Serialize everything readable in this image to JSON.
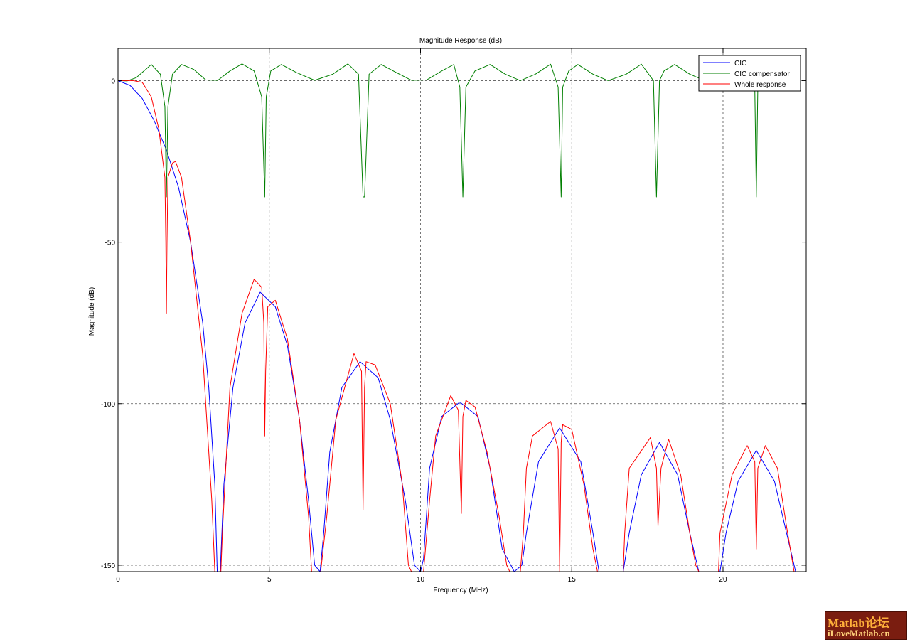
{
  "chart_data": {
    "type": "line",
    "title": "Magnitude Response (dB)",
    "xlabel": "Frequency (MHz)",
    "ylabel": "Magnitude (dB)",
    "xlim": [
      0,
      22.75
    ],
    "ylim": [
      -152,
      10
    ],
    "xticks": [
      0,
      5,
      10,
      15,
      20
    ],
    "yticks": [
      0,
      -50,
      -100,
      -150
    ],
    "grid": true,
    "legend_position": "top-right",
    "series": [
      {
        "name": "CIC",
        "color": "#0000ff",
        "x": [
          0,
          0.4,
          0.8,
          1.2,
          1.6,
          2.0,
          2.4,
          2.8,
          3.0,
          3.2,
          3.28,
          3.38,
          3.5,
          3.8,
          4.2,
          4.7,
          5.2,
          5.6,
          6.0,
          6.3,
          6.5,
          6.68,
          6.8,
          7.0,
          7.4,
          8.0,
          8.6,
          9.0,
          9.5,
          9.8,
          10.0,
          10.1,
          10.3,
          10.7,
          11.3,
          11.9,
          12.3,
          12.7,
          13.1,
          13.35,
          13.5,
          13.9,
          14.6,
          15.3,
          15.7,
          15.9,
          16.7,
          16.9,
          17.3,
          17.9,
          18.5,
          18.9,
          19.2,
          19.9,
          20.1,
          20.5,
          21.1,
          21.7,
          22.1,
          22.4
        ],
        "y": [
          0,
          -1.5,
          -5.5,
          -12.5,
          -21.5,
          -33,
          -50,
          -75,
          -95,
          -125,
          -152,
          -152,
          -125,
          -95,
          -75,
          -65.5,
          -70,
          -82,
          -105,
          -130,
          -150,
          -152,
          -140,
          -115,
          -95,
          -87,
          -92,
          -105,
          -130,
          -150,
          -152,
          -148,
          -120,
          -104,
          -99.5,
          -104,
          -120,
          -145,
          -152,
          -150,
          -140,
          -118,
          -107.5,
          -118,
          -140,
          -152,
          -152,
          -140,
          -122,
          -112,
          -122,
          -140,
          -152,
          -152,
          -140,
          -124,
          -114.5,
          -124,
          -140,
          -152
        ]
      },
      {
        "name": "CIC compensator",
        "color": "#007f00",
        "x": [
          0,
          0.3,
          0.6,
          1.1,
          1.4,
          1.55,
          1.6,
          1.65,
          1.8,
          2.1,
          2.5,
          2.9,
          3.3,
          3.7,
          4.1,
          4.5,
          4.75,
          4.85,
          4.9,
          5.05,
          5.4,
          5.9,
          6.5,
          7.1,
          7.6,
          7.95,
          8.1,
          8.15,
          8.3,
          8.7,
          9.2,
          9.7,
          10.2,
          10.7,
          11.1,
          11.3,
          11.4,
          11.5,
          11.8,
          12.3,
          12.8,
          13.3,
          13.8,
          14.3,
          14.55,
          14.65,
          14.7,
          14.9,
          15.2,
          15.7,
          16.2,
          16.8,
          17.3,
          17.7,
          17.8,
          17.9,
          18.05,
          18.4,
          18.9,
          19.4,
          19.8,
          20.3,
          20.8,
          21.05,
          21.1,
          21.15,
          21.3,
          21.6
        ],
        "y": [
          0,
          -0.1,
          0.9,
          5.0,
          2.0,
          -8,
          -36,
          -8,
          2.0,
          5.0,
          3.5,
          0.2,
          0.1,
          3.0,
          5.2,
          3.0,
          -5,
          -36,
          -5,
          3.0,
          5.0,
          2.5,
          0.1,
          2.0,
          5.2,
          2.0,
          -36,
          -36,
          2.0,
          5.0,
          2.5,
          0.1,
          0.2,
          3.0,
          5.0,
          -2,
          -36,
          -2,
          3.0,
          5.0,
          2.0,
          0.0,
          2.0,
          5.1,
          -2,
          -36,
          -2,
          3.0,
          5.0,
          2.0,
          0.0,
          2.0,
          5.1,
          0,
          -36,
          0,
          3.0,
          5.0,
          2.0,
          0.0,
          0.5,
          3.5,
          3.5,
          -2,
          -36,
          -2,
          3.0,
          4.5
        ]
      },
      {
        "name": "Whole response",
        "color": "#ff0000",
        "x": [
          0,
          0.5,
          0.8,
          1.1,
          1.35,
          1.55,
          1.58,
          1.6,
          1.62,
          1.65,
          1.8,
          1.9,
          2.1,
          2.4,
          2.8,
          3.1,
          3.2,
          3.25,
          3.32,
          3.4,
          3.45,
          3.7,
          4.1,
          4.5,
          4.75,
          4.82,
          4.85,
          4.88,
          4.95,
          5.2,
          5.6,
          6.0,
          6.3,
          6.4,
          6.5,
          6.7,
          6.9,
          7.2,
          7.8,
          8.05,
          8.1,
          8.15,
          8.2,
          8.5,
          9.0,
          9.4,
          9.6,
          9.7,
          9.8,
          9.9,
          10.0,
          10.1,
          10.3,
          10.5,
          11.0,
          11.25,
          11.35,
          11.4,
          11.5,
          11.8,
          12.2,
          12.6,
          12.85,
          12.95,
          13.05,
          13.3,
          13.4,
          13.45,
          13.5,
          13.7,
          14.3,
          14.55,
          14.6,
          14.65,
          14.7,
          15.0,
          15.4,
          15.7,
          15.85,
          15.95,
          16.7,
          16.75,
          16.9,
          17.6,
          17.8,
          17.85,
          17.95,
          18.2,
          18.6,
          18.9,
          19.1,
          19.2,
          19.85,
          19.9,
          20.3,
          20.8,
          21.05,
          21.1,
          21.15,
          21.4,
          21.8,
          22.1,
          22.35
        ],
        "y": [
          0,
          0,
          -0.5,
          -5,
          -15,
          -30,
          -50,
          -72,
          -50,
          -30,
          -25.5,
          -25,
          -30,
          -50,
          -85,
          -130,
          -152,
          -152,
          -152,
          -152,
          -140,
          -95,
          -72,
          -61.5,
          -64,
          -75,
          -110,
          -90,
          -70,
          -68,
          -80,
          -105,
          -135,
          -152,
          -152,
          -152,
          -135,
          -105,
          -84.5,
          -90,
          -133,
          -95,
          -87,
          -88,
          -100,
          -125,
          -150,
          -152,
          -152,
          -152,
          -152,
          -152,
          -130,
          -110,
          -97.5,
          -102,
          -134,
          -104,
          -99,
          -101,
          -115,
          -135,
          -150,
          -152,
          -152,
          -152,
          -140,
          -130,
          -120,
          -110,
          -105.5,
          -114,
          -152,
          -112,
          -106.5,
          -108,
          -125,
          -145,
          -152,
          -152,
          -152,
          -140,
          -120,
          -110.5,
          -120,
          -138,
          -120,
          -111,
          -122,
          -140,
          -150,
          -152,
          -152,
          -140,
          -122,
          -113,
          -118,
          -145,
          -120,
          -113,
          -120,
          -138,
          -152
        ]
      }
    ]
  },
  "watermark": {
    "line1": "Matlab论坛",
    "line2": "iLoveMatlab.cn"
  }
}
